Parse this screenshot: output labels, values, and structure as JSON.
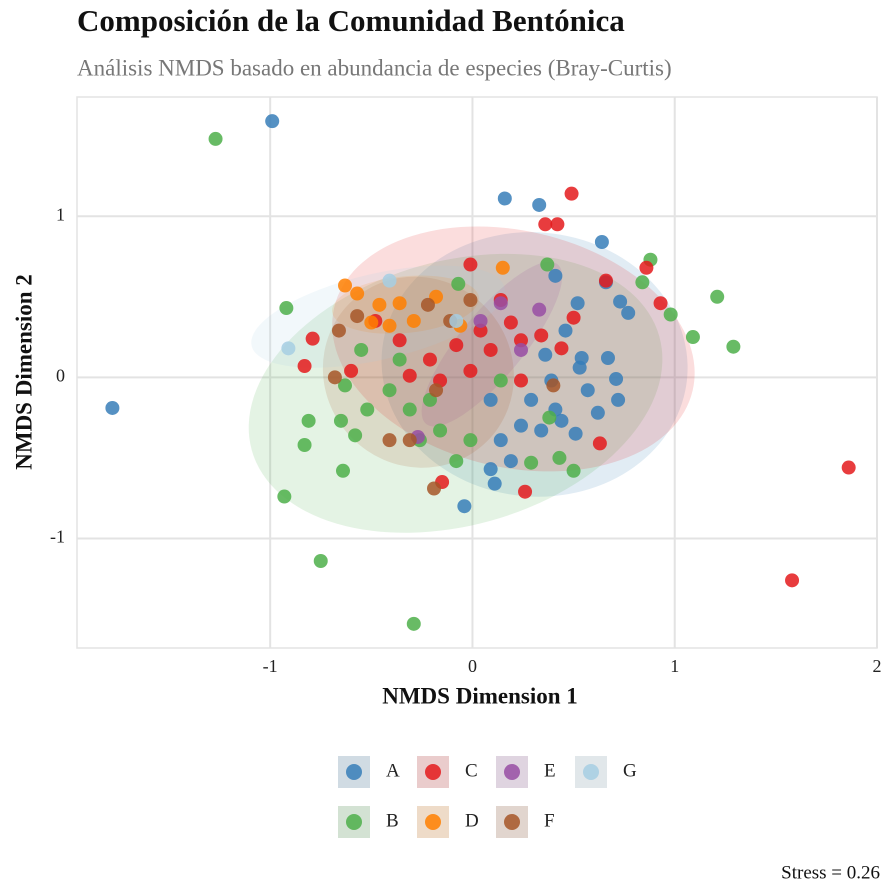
{
  "chart_data": {
    "type": "scatter",
    "title": "Composición de la Comunidad Bentónica",
    "subtitle": "Análisis NMDS basado en abundancia de especies (Bray-Curtis)",
    "x_label": "NMDS Dimension 1",
    "y_label": "NMDS Dimension 2",
    "annotation": "Stress = 0.26",
    "xlim": [
      -1.955,
      2.0
    ],
    "ylim": [
      -1.68,
      1.74
    ],
    "xticks": [
      -1,
      0,
      1,
      2
    ],
    "yticks": [
      -1,
      0,
      1
    ],
    "grid": true,
    "legend": "bottom",
    "series": [
      {
        "name": "A",
        "color": "#377eb8",
        "x": [
          -0.99,
          -1.78,
          0.16,
          0.33,
          0.64,
          0.41,
          0.66,
          0.52,
          0.73,
          0.77,
          -0.04,
          0.11,
          0.09,
          0.54,
          0.67,
          0.71,
          0.72,
          0.62,
          0.51,
          0.44,
          0.34,
          0.24,
          0.14,
          0.19,
          0.29,
          0.39,
          0.36,
          0.46,
          0.09,
          0.53,
          0.41,
          0.57
        ],
        "y": [
          1.59,
          -0.19,
          1.11,
          1.07,
          0.84,
          0.63,
          0.59,
          0.46,
          0.47,
          0.4,
          -0.8,
          -0.66,
          -0.57,
          0.12,
          0.12,
          -0.01,
          -0.14,
          -0.22,
          -0.35,
          -0.27,
          -0.33,
          -0.3,
          -0.39,
          -0.52,
          -0.14,
          -0.02,
          0.14,
          0.29,
          -0.14,
          0.06,
          -0.2,
          -0.08
        ]
      },
      {
        "name": "B",
        "color": "#4daf4a",
        "x": [
          -1.27,
          -0.92,
          -0.93,
          -0.75,
          -0.29,
          0.37,
          0.88,
          0.84,
          0.98,
          1.21,
          1.09,
          1.29,
          0.5,
          -0.83,
          -0.81,
          -0.64,
          -0.63,
          -0.65,
          -0.52,
          -0.41,
          -0.31,
          -0.21,
          -0.16,
          -0.26,
          -0.08,
          -0.01,
          -0.55,
          -0.36,
          -0.07,
          0.38,
          0.29,
          0.43,
          0.14,
          -0.58
        ],
        "y": [
          1.48,
          0.43,
          -0.74,
          -1.14,
          -1.53,
          0.7,
          0.73,
          0.59,
          0.39,
          0.5,
          0.25,
          0.19,
          -0.58,
          -0.42,
          -0.27,
          -0.58,
          -0.05,
          -0.27,
          -0.2,
          -0.08,
          -0.2,
          -0.14,
          -0.33,
          -0.39,
          -0.52,
          -0.39,
          0.17,
          0.11,
          0.58,
          -0.25,
          -0.53,
          -0.5,
          -0.02,
          -0.36
        ]
      },
      {
        "name": "C",
        "color": "#e41a1c",
        "x": [
          0.49,
          0.36,
          0.42,
          -0.01,
          0.66,
          0.86,
          0.93,
          1.86,
          1.58,
          0.63,
          0.26,
          -0.15,
          -0.83,
          -0.79,
          0.19,
          0.04,
          -0.08,
          -0.21,
          0.09,
          0.24,
          0.34,
          0.5,
          0.44,
          -0.01,
          -0.16,
          -0.36,
          -0.48,
          -0.6,
          0.14,
          0.24,
          -0.31
        ],
        "y": [
          1.14,
          0.95,
          0.95,
          0.7,
          0.6,
          0.68,
          0.46,
          -0.56,
          -1.26,
          -0.41,
          -0.71,
          -0.65,
          0.07,
          0.24,
          0.34,
          0.29,
          0.2,
          0.11,
          0.17,
          0.23,
          0.26,
          0.37,
          0.18,
          0.04,
          -0.02,
          0.23,
          0.35,
          0.04,
          0.48,
          -0.02,
          0.01
        ]
      },
      {
        "name": "D",
        "color": "#ff7f00",
        "x": [
          0.15,
          -0.63,
          -0.57,
          -0.46,
          -0.36,
          -0.29,
          -0.5,
          -0.18,
          -0.06,
          -0.41
        ],
        "y": [
          0.68,
          0.57,
          0.52,
          0.45,
          0.46,
          0.35,
          0.34,
          0.5,
          0.32,
          0.32
        ]
      },
      {
        "name": "E",
        "color": "#984ea3",
        "x": [
          0.14,
          0.04,
          0.24,
          -0.27,
          0.33
        ],
        "y": [
          0.46,
          0.35,
          0.17,
          -0.37,
          0.42
        ]
      },
      {
        "name": "F",
        "color": "#a65628",
        "x": [
          -0.19,
          -0.66,
          -0.57,
          -0.41,
          -0.31,
          -0.22,
          -0.11,
          -0.01,
          -0.68,
          0.4,
          -0.18
        ],
        "y": [
          -0.69,
          0.29,
          0.38,
          -0.39,
          -0.39,
          0.45,
          0.35,
          0.48,
          0.0,
          -0.05,
          -0.08
        ]
      },
      {
        "name": "G",
        "color": "#a6cee3",
        "x": [
          -0.41,
          -0.91,
          -0.08
        ],
        "y": [
          0.6,
          0.18,
          0.35
        ]
      }
    ]
  }
}
